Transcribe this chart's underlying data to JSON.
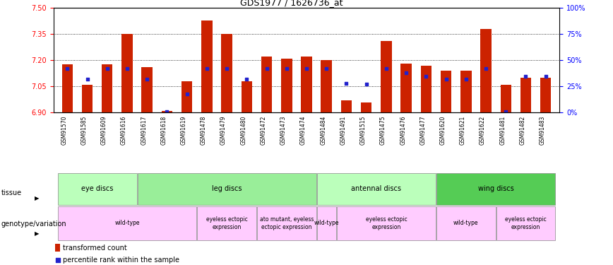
{
  "title": "GDS1977 / 1626736_at",
  "samples": [
    "GSM91570",
    "GSM91585",
    "GSM91609",
    "GSM91616",
    "GSM91617",
    "GSM91618",
    "GSM91619",
    "GSM91478",
    "GSM91479",
    "GSM91480",
    "GSM91472",
    "GSM91473",
    "GSM91474",
    "GSM91484",
    "GSM91491",
    "GSM91515",
    "GSM91475",
    "GSM91476",
    "GSM91477",
    "GSM91620",
    "GSM91621",
    "GSM91622",
    "GSM91481",
    "GSM91482",
    "GSM91483"
  ],
  "transformed_count": [
    7.175,
    7.06,
    7.175,
    7.35,
    7.16,
    6.91,
    7.08,
    7.43,
    7.35,
    7.08,
    7.22,
    7.21,
    7.22,
    7.2,
    6.97,
    6.96,
    7.31,
    7.18,
    7.17,
    7.14,
    7.14,
    7.38,
    7.06,
    7.1,
    7.1
  ],
  "percentile_rank": [
    42,
    32,
    42,
    42,
    32,
    1,
    18,
    42,
    42,
    32,
    42,
    42,
    42,
    42,
    28,
    27,
    42,
    38,
    35,
    32,
    32,
    42,
    1,
    35,
    35
  ],
  "y_min": 6.9,
  "y_max": 7.5,
  "y_ticks": [
    6.9,
    7.05,
    7.2,
    7.35,
    7.5
  ],
  "bar_color": "#cc2200",
  "marker_color": "#2222cc",
  "tissue_groups": [
    {
      "label": "eye discs",
      "start": 0,
      "end": 3,
      "color": "#bbffbb"
    },
    {
      "label": "leg discs",
      "start": 4,
      "end": 12,
      "color": "#99ee99"
    },
    {
      "label": "antennal discs",
      "start": 13,
      "end": 18,
      "color": "#bbffbb"
    },
    {
      "label": "wing discs",
      "start": 19,
      "end": 24,
      "color": "#55cc55"
    }
  ],
  "genotype_groups": [
    {
      "label": "wild-type",
      "start": 0,
      "end": 6
    },
    {
      "label": "eyeless ectopic\nexpression",
      "start": 7,
      "end": 9
    },
    {
      "label": "ato mutant, eyeless\nectopic expression",
      "start": 10,
      "end": 12
    },
    {
      "label": "wild-type",
      "start": 13,
      "end": 13
    },
    {
      "label": "eyeless ectopic\nexpression",
      "start": 14,
      "end": 18
    },
    {
      "label": "wild-type",
      "start": 19,
      "end": 21
    },
    {
      "label": "eyeless ectopic\nexpression",
      "start": 22,
      "end": 24
    }
  ],
  "background_color": "#ffffff"
}
